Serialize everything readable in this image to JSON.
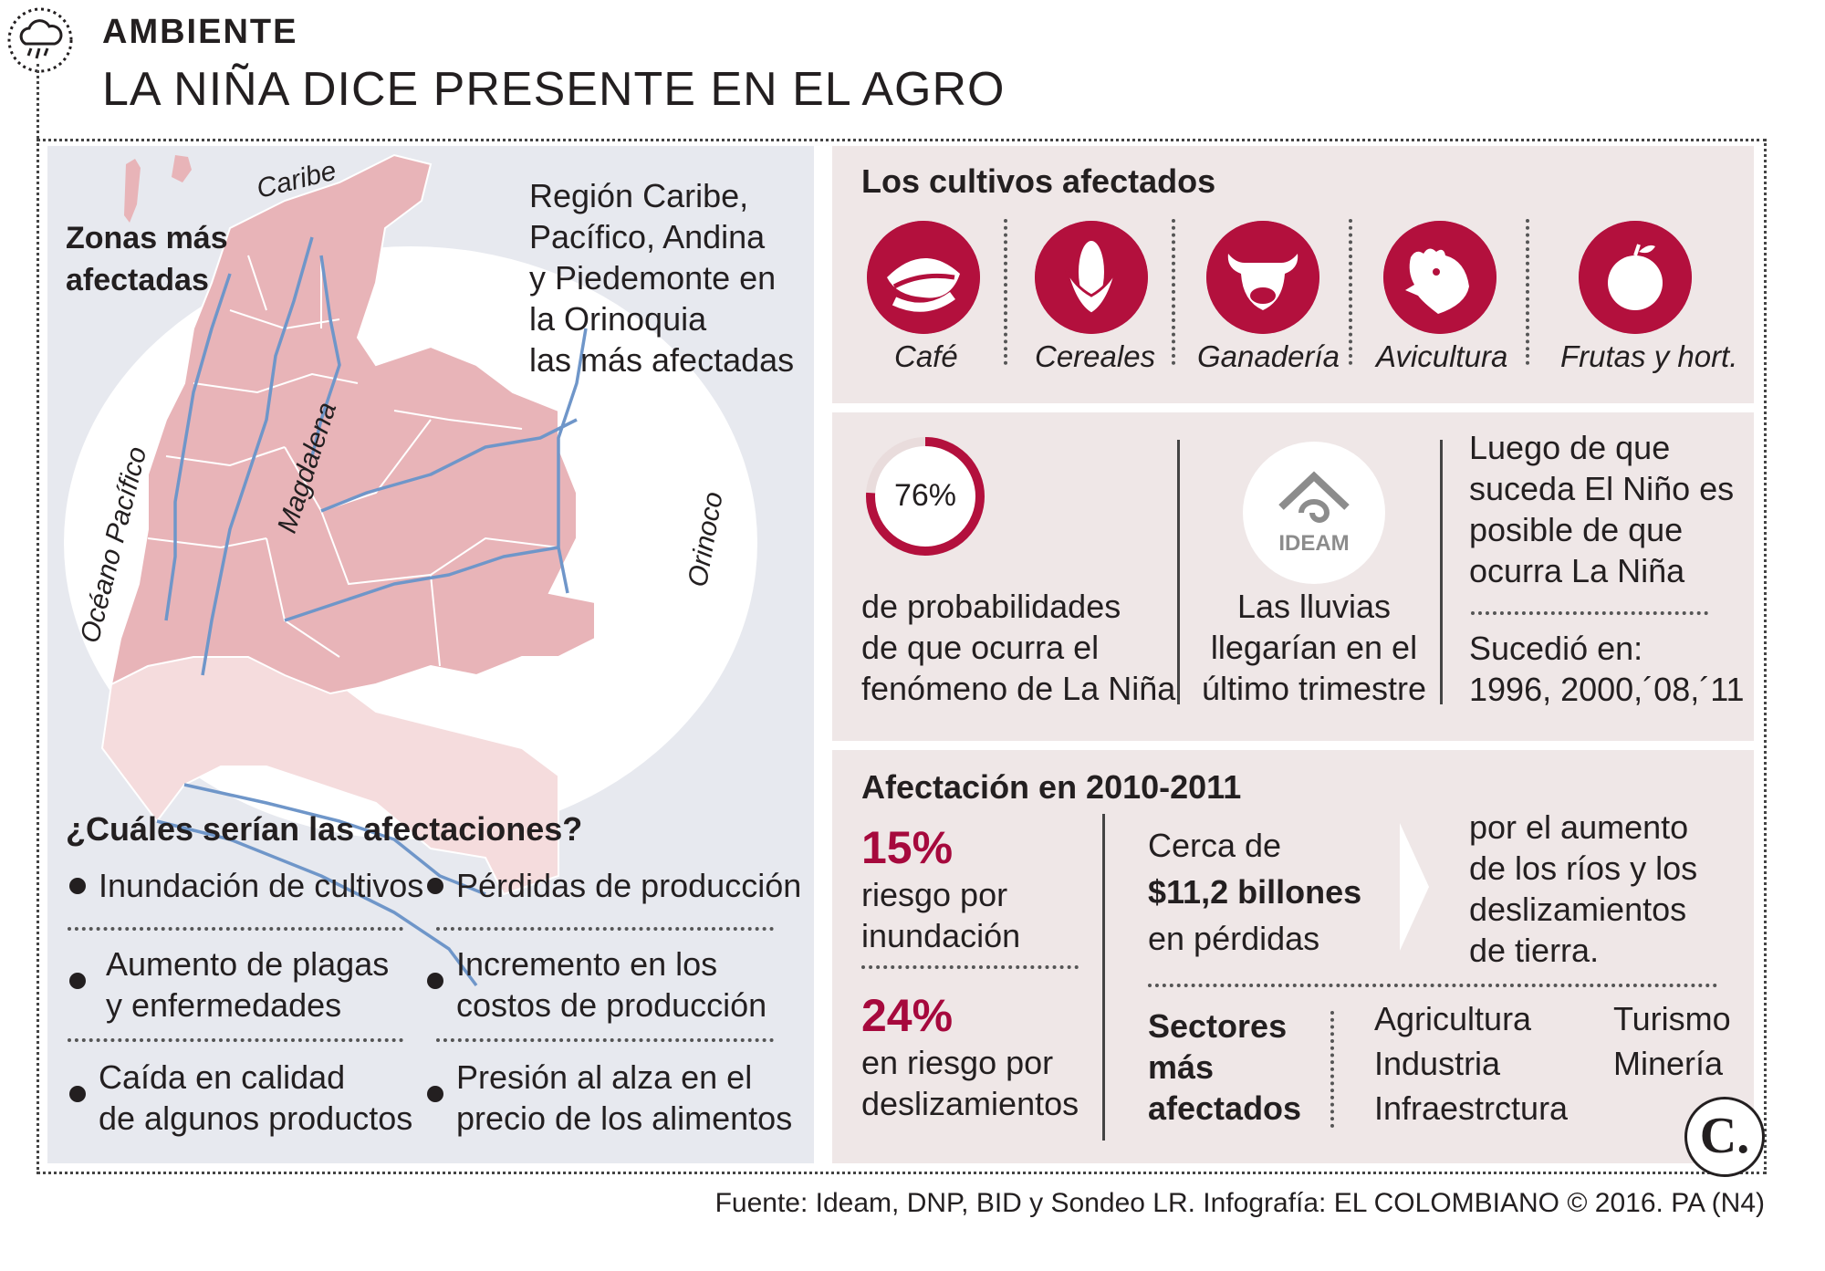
{
  "header": {
    "section": "AMBIENTE",
    "title": "LA NIÑA DICE PRESENTE EN EL AGRO",
    "icon": "rain-cloud-icon"
  },
  "map": {
    "heading_line1": "Zonas más",
    "heading_line2": "afectadas",
    "label_caribe": "Caribe",
    "label_pacifico": "Océano Pacífico",
    "label_magdalena": "Magdalena",
    "label_orinoco": "Orinoco",
    "region_lines": [
      "Región Caribe,",
      "Pacífico, Andina",
      "y Piedemonte en",
      "la Orinoquia",
      "las más afectadas"
    ]
  },
  "effects": {
    "heading": "¿Cuáles serían las afectaciones?",
    "items": [
      {
        "line1": "Inundación de cultivos",
        "line2": ""
      },
      {
        "line1": "Pérdidas de producción",
        "line2": ""
      },
      {
        "line1": "Aumento de plagas",
        "line2": "y enfermedades"
      },
      {
        "line1": "Incremento en los",
        "line2": "costos de producción"
      },
      {
        "line1": "Caída en calidad",
        "line2": "de algunos productos"
      },
      {
        "line1": "Presión al alza en el",
        "line2": "precio de los alimentos"
      }
    ]
  },
  "crops": {
    "heading": "Los cultivos afectados",
    "items": [
      {
        "label": "Café",
        "icon": "coffee-bean-icon"
      },
      {
        "label": "Cereales",
        "icon": "corn-icon"
      },
      {
        "label": "Ganadería",
        "icon": "cow-icon"
      },
      {
        "label": "Avicultura",
        "icon": "chicken-icon"
      },
      {
        "label": "Frutas y hort.",
        "icon": "apple-icon"
      }
    ]
  },
  "probability": {
    "value": "76%",
    "fraction": 0.76,
    "lines": [
      "de probabilidades",
      "de que ocurra el",
      "fenómeno de La Niña"
    ]
  },
  "ideam": {
    "logo_text": "IDEAM",
    "lines": [
      "Las lluvias",
      "llegarían en el",
      "último trimestre"
    ]
  },
  "nino": {
    "lines": [
      "Luego de que",
      "suceda El Niño es",
      "posible de que",
      "ocurra La Niña"
    ],
    "years_line1": "Sucedió en:",
    "years_line2": "1996, 2000,´08,´11"
  },
  "impact": {
    "heading": "Afectación en 2010-2011",
    "flood_pct": "15%",
    "flood_lines": [
      "riesgo por",
      "inundación"
    ],
    "slide_pct": "24%",
    "slide_lines": [
      "en riesgo por",
      "deslizamientos"
    ],
    "loss_line1": "Cerca de",
    "loss_amount": "$11,2 billones",
    "loss_line3": "en pérdidas",
    "cause_lines": [
      "por el aumento",
      "de los ríos y los",
      "deslizamientos",
      "de tierra."
    ],
    "sectors_heading": [
      "Sectores",
      "más",
      "afectados"
    ],
    "sectors_col1": [
      "Agricultura",
      "Industria",
      "Infraestrctura"
    ],
    "sectors_col2": [
      "Turismo",
      "Minería"
    ]
  },
  "footer": {
    "source": "Fuente: Ideam, DNP, BID y Sondeo LR. Infografía: EL COLOMBIANO © 2016. PA (N4)",
    "logo": "C."
  },
  "colors": {
    "accent": "#b3103d",
    "panel_left": "#e7e9ef",
    "panel_right": "#efe7e7",
    "map_dark": "#e8b4b8",
    "map_light": "#f5dcdd",
    "river": "#6f96c9"
  }
}
